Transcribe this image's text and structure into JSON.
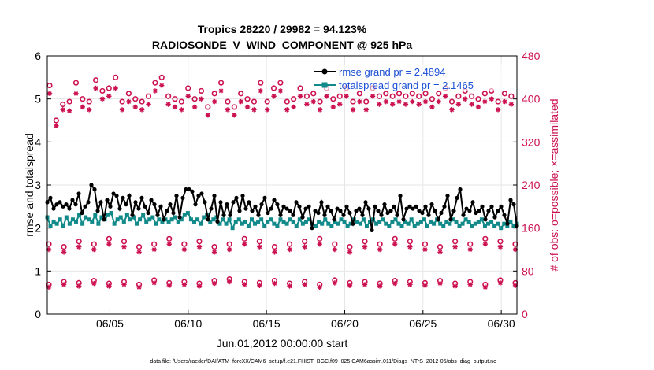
{
  "chart_data": {
    "type": "line",
    "title": [
      "Tropics 28220 / 29982 = 94.123%",
      "RADIOSONDE_V_WIND_COMPONENT @ 925 hPa"
    ],
    "xlabel": "Jun.01,2012 00:00:00 start",
    "ylabel_left": "rmse and totalspread",
    "ylabel_right": "# of obs: o=possible; ×=assimilated",
    "x_day_range": [
      1,
      31
    ],
    "x_ticks": [
      5,
      10,
      15,
      20,
      25,
      30
    ],
    "x_tick_labels": [
      "06/05",
      "06/10",
      "06/15",
      "06/20",
      "06/25",
      "06/30"
    ],
    "ylim_left": [
      0,
      6
    ],
    "yticks_left": [
      "0",
      "1",
      "2",
      "3",
      "4",
      "5",
      "6"
    ],
    "ylim_right": [
      0,
      480
    ],
    "yticks_right": [
      "0",
      "80",
      "160",
      "240",
      "320",
      "400",
      "480"
    ],
    "grid": true,
    "legend_position": "top-right",
    "series": [
      {
        "name": "rmse grand pr = 2.4894",
        "axis": "left",
        "color": "#000000",
        "values": [
          2.6,
          2.7,
          2.45,
          2.55,
          2.6,
          2.5,
          2.55,
          2.45,
          2.65,
          2.55,
          2.8,
          2.35,
          2.5,
          2.6,
          3.0,
          2.9,
          2.4,
          2.6,
          2.2,
          2.65,
          2.5,
          2.8,
          2.75,
          2.45,
          2.7,
          2.55,
          2.75,
          2.3,
          2.6,
          2.45,
          2.7,
          2.5,
          2.35,
          2.65,
          2.55,
          2.3,
          2.5,
          2.2,
          2.4,
          2.55,
          2.35,
          2.75,
          2.25,
          2.7,
          2.9,
          2.9,
          2.85,
          2.55,
          2.75,
          2.8,
          2.6,
          2.2,
          2.45,
          2.75,
          2.15,
          2.6,
          2.3,
          2.55,
          2.3,
          2.6,
          2.7,
          2.4,
          2.75,
          2.45,
          2.6,
          2.4,
          2.5,
          2.3,
          2.55,
          2.7,
          2.35,
          2.45,
          2.65,
          2.55,
          2.3,
          2.5,
          2.45,
          2.4,
          2.3,
          2.6,
          2.5,
          2.25,
          2.45,
          2.5,
          2.0,
          2.4,
          2.35,
          2.6,
          2.3,
          2.5,
          2.4,
          2.2,
          2.45,
          2.4,
          2.3,
          2.5,
          2.35,
          2.1,
          2.4,
          2.45,
          2.3,
          2.6,
          2.45,
          1.95,
          2.5,
          2.4,
          2.3,
          2.55,
          2.35,
          2.4,
          2.5,
          2.3,
          2.75,
          2.2,
          2.45,
          2.5,
          2.45,
          2.5,
          2.4,
          2.35,
          2.5,
          2.3,
          2.55,
          2.4,
          2.2,
          2.35,
          2.5,
          2.75,
          2.2,
          2.4,
          2.7,
          2.9,
          2.3,
          2.45,
          2.4,
          2.6,
          2.35,
          2.4,
          2.5,
          2.2,
          2.4,
          2.5,
          2.25,
          2.4,
          2.5,
          2.3,
          2.1,
          2.65,
          2.55,
          2.05
        ]
      },
      {
        "name": "totalspread grand pr = 2.1465",
        "axis": "left",
        "color": "#138a8a",
        "values": [
          2.25,
          2.05,
          2.15,
          2.1,
          2.2,
          2.05,
          2.25,
          2.1,
          2.2,
          2.15,
          2.3,
          2.1,
          2.25,
          2.2,
          2.15,
          2.3,
          2.1,
          2.25,
          2.2,
          2.3,
          2.35,
          2.1,
          2.2,
          2.25,
          2.15,
          2.3,
          2.2,
          2.25,
          2.1,
          2.2,
          2.3,
          2.15,
          2.2,
          2.25,
          2.1,
          2.2,
          2.15,
          2.2,
          2.15,
          2.2,
          2.25,
          2.15,
          2.2,
          2.3,
          2.35,
          2.2,
          2.15,
          2.2,
          2.1,
          2.25,
          2.3,
          2.15,
          2.2,
          2.25,
          2.1,
          2.2,
          2.1,
          2.2,
          2.0,
          2.15,
          2.2,
          2.1,
          2.15,
          2.05,
          2.2,
          2.1,
          2.15,
          2.2,
          2.05,
          2.15,
          2.2,
          2.1,
          2.05,
          2.2,
          2.15,
          2.1,
          2.2,
          2.15,
          2.05,
          2.2,
          2.1,
          2.15,
          2.2,
          2.1,
          2.05,
          2.15,
          2.1,
          2.2,
          2.1,
          2.05,
          2.15,
          2.1,
          2.2,
          2.15,
          2.05,
          2.1,
          2.2,
          2.15,
          2.1,
          2.2,
          2.05,
          2.15,
          2.2,
          2.1,
          2.15,
          2.2,
          2.1,
          2.05,
          2.15,
          2.2,
          2.1,
          2.05,
          2.15,
          2.1,
          2.2,
          2.05,
          2.1,
          2.15,
          2.2,
          2.05,
          2.15,
          2.1,
          2.2,
          2.1,
          2.05,
          2.15,
          2.1,
          2.2,
          2.15,
          2.05,
          2.1,
          2.2,
          2.15,
          2.05,
          2.1,
          2.15,
          2.2,
          2.05,
          2.1,
          2.15,
          2.05,
          2.1,
          2.0,
          2.1,
          2.05,
          2.15,
          2.05,
          2.1
        ]
      },
      {
        "name": "possible (upper cluster)",
        "axis": "right",
        "color": "#cc1150",
        "marker": "o",
        "values": [
          425,
          380,
          360,
          400,
          390,
          385,
          395,
          350,
          430,
          370,
          400,
          410,
          395,
          420,
          435,
          405,
          415,
          395,
          420,
          430,
          440,
          400,
          395,
          385,
          410,
          390,
          400,
          420,
          395,
          410,
          405,
          425,
          430,
          420,
          440,
          395,
          405,
          415,
          400,
          385,
          395,
          410,
          420,
          430,
          400,
          390,
          415,
          405,
          385,
          395,
          410,
          420,
          430,
          400,
          395,
          405,
          385,
          395,
          410,
          420,
          400,
          405,
          395,
          410,
          430,
          400,
          395,
          405,
          420,
          410,
          430,
          405,
          395,
          385,
          400,
          410,
          420,
          395,
          405,
          390,
          410,
          400,
          395,
          405,
          420,
          410,
          400,
          395,
          405,
          390,
          420,
          410,
          395,
          405,
          410,
          400,
          395,
          405,
          420,
          415,
          405,
          395,
          410,
          400,
          405,
          420,
          410,
          395,
          405,
          400,
          410,
          420,
          405,
          395,
          410,
          405,
          400,
          415,
          410,
          405,
          420,
          400,
          395,
          410,
          405,
          400,
          415,
          410,
          405,
          420,
          400,
          395,
          410,
          405,
          415,
          400,
          395,
          405,
          410,
          420,
          405,
          400
        ]
      },
      {
        "name": "assimilated (upper cluster)",
        "axis": "right",
        "color": "#cc1150",
        "marker": "*",
        "values": [
          410,
          345,
          350,
          375,
          380,
          375,
          378,
          340,
          410,
          360,
          385,
          395,
          380,
          405,
          420,
          390,
          400,
          380,
          405,
          415,
          420,
          385,
          380,
          370,
          395,
          375,
          385,
          405,
          380,
          395,
          390,
          410,
          415,
          405,
          425,
          380,
          390,
          400,
          385,
          370,
          380,
          395,
          405,
          415,
          385,
          375,
          400,
          390,
          370,
          380,
          395,
          405,
          415,
          385,
          380,
          390,
          370,
          380,
          395,
          405,
          385,
          390,
          380,
          395,
          415,
          385,
          380,
          390,
          405,
          395,
          415,
          390,
          380,
          370,
          385,
          395,
          405,
          380,
          390,
          375,
          395,
          385,
          380,
          390,
          405,
          395,
          385,
          380,
          390,
          375,
          405,
          395,
          380,
          390,
          395,
          385,
          380,
          390,
          405,
          400,
          390,
          380,
          395,
          385,
          390,
          405,
          395,
          380,
          390,
          385,
          395,
          405,
          390,
          380,
          395,
          390,
          385,
          400,
          395,
          390,
          405,
          385,
          380,
          395,
          390,
          385,
          400,
          395,
          390,
          405,
          385,
          380,
          395,
          390,
          400,
          385,
          380,
          390,
          395,
          405,
          390,
          385
        ]
      }
    ],
    "lower_series": {
      "possible_160": [
        130,
        125,
        135,
        130,
        140,
        135,
        125,
        130,
        140,
        130,
        135,
        125,
        130,
        140,
        135,
        125,
        130,
        135,
        140,
        130,
        125,
        135,
        130,
        140,
        135,
        130,
        125,
        135,
        130,
        140,
        135,
        130
      ],
      "assimilated_160": [
        120,
        115,
        125,
        120,
        130,
        125,
        115,
        120,
        130,
        120,
        125,
        115,
        120,
        130,
        125,
        115,
        120,
        125,
        130,
        120,
        115,
        125,
        120,
        130,
        125,
        120,
        115,
        125,
        120,
        130,
        125,
        120
      ],
      "possible_60": [
        55,
        60,
        58,
        62,
        57,
        60,
        55,
        63,
        58,
        60,
        57,
        62,
        65,
        60,
        58,
        62,
        57,
        60,
        55,
        63,
        58,
        60,
        57,
        62,
        60,
        58,
        62,
        57,
        60,
        55,
        63,
        58
      ],
      "assimilated_60": [
        50,
        55,
        52,
        57,
        52,
        55,
        50,
        58,
        53,
        55,
        52,
        57,
        60,
        55,
        53,
        57,
        52,
        55,
        50,
        58,
        53,
        55,
        52,
        57,
        55,
        53,
        57,
        52,
        55,
        50,
        58,
        53
      ]
    },
    "footer": "data file: /Users/raeder/DAI/ATM_forcXX/CAM6_setup/f.e21.FHIST_BGC.f09_025.CAM6assim.011/Diags_NTrS_2012-06/obs_diag_output.nc"
  }
}
